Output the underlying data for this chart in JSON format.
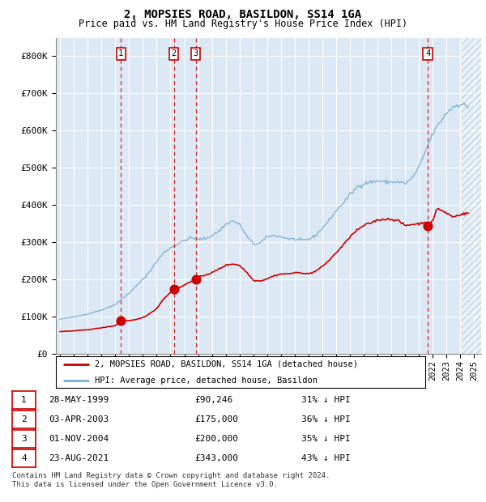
{
  "title": "2, MOPSIES ROAD, BASILDON, SS14 1GA",
  "subtitle": "Price paid vs. HM Land Registry's House Price Index (HPI)",
  "hpi_color": "#7bafd4",
  "price_color": "#cc0000",
  "bg_color": "#dce9f5",
  "grid_color": "#ffffff",
  "ylim": [
    0,
    850000
  ],
  "yticks": [
    0,
    100000,
    200000,
    300000,
    400000,
    500000,
    600000,
    700000,
    800000
  ],
  "ytick_labels": [
    "£0",
    "£100K",
    "£200K",
    "£300K",
    "£400K",
    "£500K",
    "£600K",
    "£700K",
    "£800K"
  ],
  "xlim_start": 1994.7,
  "xlim_end": 2025.5,
  "transactions": [
    {
      "label": "1",
      "date": 1999.41,
      "price": 90246
    },
    {
      "label": "2",
      "date": 2003.25,
      "price": 175000
    },
    {
      "label": "3",
      "date": 2004.83,
      "price": 200000
    },
    {
      "label": "4",
      "date": 2021.64,
      "price": 343000
    }
  ],
  "legend_line1": "2, MOPSIES ROAD, BASILDON, SS14 1GA (detached house)",
  "legend_line2": "HPI: Average price, detached house, Basildon",
  "table_rows": [
    {
      "num": "1",
      "date": "28-MAY-1999",
      "price": "£90,246",
      "note": "31% ↓ HPI"
    },
    {
      "num": "2",
      "date": "03-APR-2003",
      "price": "£175,000",
      "note": "36% ↓ HPI"
    },
    {
      "num": "3",
      "date": "01-NOV-2004",
      "price": "£200,000",
      "note": "35% ↓ HPI"
    },
    {
      "num": "4",
      "date": "23-AUG-2021",
      "price": "£343,000",
      "note": "43% ↓ HPI"
    }
  ],
  "footnote1": "Contains HM Land Registry data © Crown copyright and database right 2024.",
  "footnote2": "This data is licensed under the Open Government Licence v3.0.",
  "hatch_region_start": 2024.08
}
